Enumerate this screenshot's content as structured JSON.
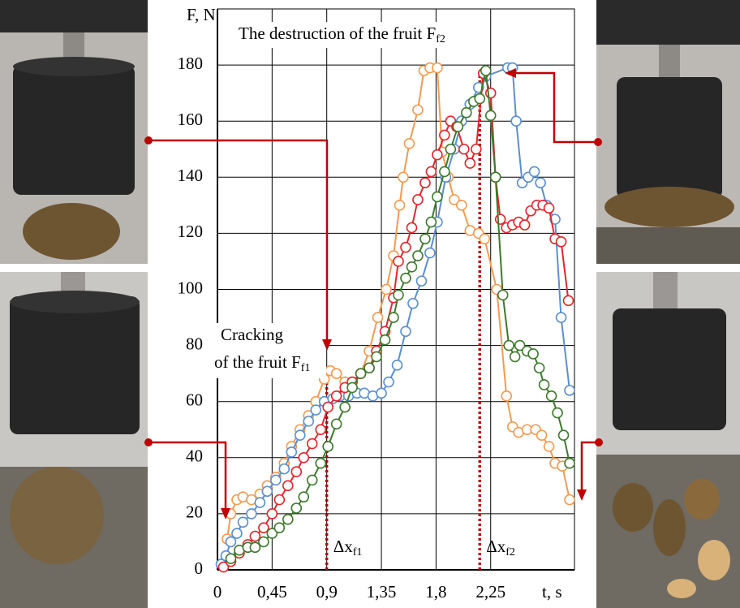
{
  "chart_data": {
    "type": "line",
    "title": "The destruction of the fruit F",
    "title_sub": "f2",
    "ylabel": "F, N",
    "xlabel": "t, s",
    "annotation": {
      "lines": [
        "Cracking",
        "of the fruit F"
      ],
      "sub": "f1"
    },
    "markers": [
      {
        "x": 0.9,
        "top": 72,
        "label": "Δx",
        "sub": "f1"
      },
      {
        "x": 2.16,
        "top": 178,
        "label": "Δx",
        "sub": "f2"
      }
    ],
    "xlim": [
      0,
      2.94
    ],
    "ylim": [
      0,
      200
    ],
    "xticks": [
      0,
      {
        "value": 0.45,
        "label": "0,45"
      },
      {
        "value": 0.9,
        "label": "0,9"
      },
      {
        "value": 1.35,
        "label": "1,35"
      },
      {
        "value": 1.8,
        "label": "1,8"
      },
      {
        "value": 2.25,
        "label": "2,25"
      }
    ],
    "yticks": [
      0,
      20,
      40,
      60,
      80,
      100,
      120,
      140,
      160,
      180
    ],
    "grid": true,
    "series": [
      {
        "color": "#f59a4f",
        "x": [
          0.08,
          0.11,
          0.16,
          0.21,
          0.28,
          0.35,
          0.41,
          0.48,
          0.55,
          0.61,
          0.68,
          0.75,
          0.81,
          0.88,
          0.93,
          0.98,
          1.05,
          1.11,
          1.18,
          1.25,
          1.32,
          1.39,
          1.45,
          1.5,
          1.53,
          1.58,
          1.65,
          1.7,
          1.75,
          1.81,
          1.85,
          1.9,
          1.95,
          2.01,
          2.08,
          2.15,
          2.2,
          2.3,
          2.38,
          2.43,
          2.48,
          2.55,
          2.62,
          2.67,
          2.73,
          2.78,
          2.84,
          2.9
        ],
        "values": [
          11,
          20,
          25,
          26,
          25,
          27,
          30,
          33,
          38,
          44,
          50,
          55,
          60,
          68,
          71,
          70,
          67,
          67,
          70,
          78,
          90,
          100,
          112,
          130,
          140,
          152,
          164,
          178,
          179,
          179,
          149,
          140,
          132,
          130,
          121,
          120,
          118,
          100,
          62,
          51,
          49,
          50,
          50,
          48,
          44,
          38,
          37,
          25
        ]
      },
      {
        "color": "#5b8fd0",
        "x": [
          0.03,
          0.07,
          0.11,
          0.16,
          0.21,
          0.28,
          0.35,
          0.41,
          0.48,
          0.55,
          0.61,
          0.68,
          0.75,
          0.81,
          0.88,
          0.95,
          1.01,
          1.08,
          1.15,
          1.21,
          1.28,
          1.35,
          1.41,
          1.48,
          1.55,
          1.61,
          1.68,
          1.75,
          1.81,
          1.88,
          1.95,
          2.01,
          2.08,
          2.15,
          2.21,
          2.39,
          2.43,
          2.46,
          2.51,
          2.56,
          2.61,
          2.66,
          2.71,
          2.78,
          2.83,
          2.9
        ],
        "values": [
          2,
          5,
          10,
          13,
          17,
          20,
          24,
          28,
          32,
          36,
          42,
          48,
          53,
          57,
          60,
          61,
          62,
          62,
          63,
          63,
          62,
          63,
          67,
          73,
          85,
          95,
          103,
          113,
          124,
          140,
          150,
          160,
          166,
          172,
          176,
          179,
          179,
          160,
          138,
          140,
          142,
          138,
          130,
          125,
          90,
          64
        ]
      },
      {
        "color": "#e3262b",
        "x": [
          0.05,
          0.11,
          0.18,
          0.25,
          0.31,
          0.38,
          0.45,
          0.51,
          0.58,
          0.65,
          0.71,
          0.78,
          0.85,
          0.91,
          0.98,
          1.05,
          1.11,
          1.18,
          1.25,
          1.31,
          1.38,
          1.45,
          1.49,
          1.55,
          1.6,
          1.65,
          1.71,
          1.76,
          1.81,
          1.87,
          1.92,
          1.97,
          2.03,
          2.08,
          2.13,
          2.19,
          2.25,
          2.29,
          2.33,
          2.38,
          2.43,
          2.48,
          2.53,
          2.58,
          2.63,
          2.68,
          2.73,
          2.78,
          2.83,
          2.89
        ],
        "values": [
          1,
          3,
          6,
          9,
          12,
          15,
          20,
          25,
          30,
          35,
          40,
          45,
          50,
          58,
          62,
          65,
          67,
          70,
          72,
          78,
          85,
          97,
          110,
          115,
          122,
          132,
          138,
          142,
          148,
          155,
          160,
          158,
          150,
          145,
          150,
          177,
          170,
          140,
          125,
          122,
          123,
          124,
          123,
          128,
          130,
          130,
          129,
          118,
          117,
          96
        ]
      },
      {
        "color": "#3d7a2c",
        "x": [
          0.11,
          0.18,
          0.25,
          0.31,
          0.38,
          0.45,
          0.51,
          0.58,
          0.65,
          0.71,
          0.78,
          0.85,
          0.91,
          0.98,
          1.05,
          1.11,
          1.18,
          1.25,
          1.31,
          1.38,
          1.45,
          1.49,
          1.55,
          1.6,
          1.65,
          1.71,
          1.76,
          1.81,
          1.87,
          1.92,
          1.98,
          2.05,
          2.11,
          2.16,
          2.21,
          2.25,
          2.29,
          2.35,
          2.4,
          2.45,
          2.49,
          2.55,
          2.6,
          2.65,
          2.69,
          2.75,
          2.8,
          2.85,
          2.9
        ],
        "values": [
          4,
          7,
          8,
          8,
          10,
          13,
          15,
          18,
          22,
          26,
          32,
          38,
          44,
          52,
          58,
          65,
          70,
          72,
          76,
          82,
          90,
          98,
          104,
          108,
          112,
          118,
          124,
          133,
          142,
          150,
          158,
          163,
          167,
          168,
          178,
          162,
          140,
          98,
          80,
          76,
          80,
          78,
          77,
          72,
          66,
          62,
          56,
          48,
          38
        ]
      }
    ]
  }
}
